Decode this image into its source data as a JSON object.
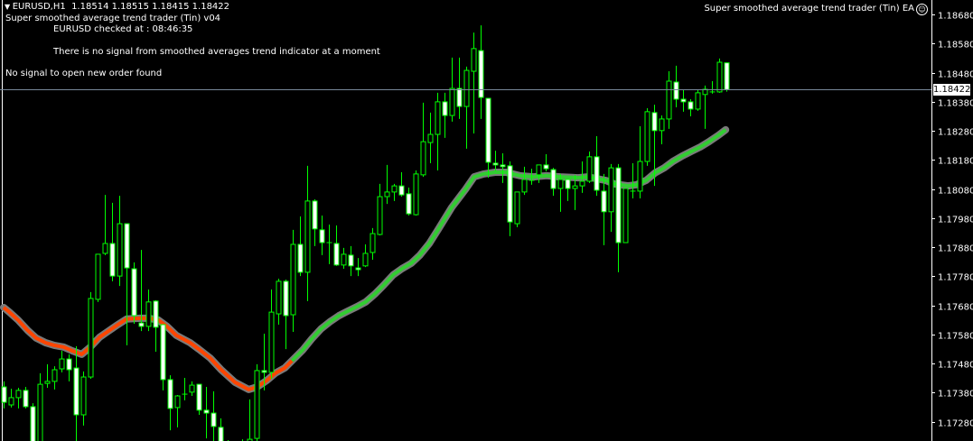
{
  "header": {
    "collapse_icon": "triangle-down-icon",
    "symbol_line": "EURUSD,H1  1.18514 1.18515 1.18415 1.18422",
    "ea_name_version": "Super smoothed average trend trader (Tin) v04",
    "checked_line": "EURUSD checked at : 08:46:35",
    "signal_message": "There is no signal from smoothed averages trend indicator at a moment",
    "order_message": "No signal to open new order found",
    "ea_title": "Super smoothed average trend trader (Tin) EA",
    "ea_status_icon": "smiley-icon"
  },
  "colors": {
    "background": "#000000",
    "candle_outline": "#00ff00",
    "bear_fill": "#ffffff",
    "bull_fill": "#000000",
    "ma_down": "#ff4500",
    "ma_up": "#32cd32",
    "ma_shadow": "#7a7a7a",
    "bid_line": "#778899"
  },
  "chart_data": {
    "type": "candlestick",
    "symbol": "EURUSD",
    "timeframe": "H1",
    "ylim": [
      1.17214,
      1.1873
    ],
    "grid": false,
    "y_ticks": [
      "1.18680",
      "1.18580",
      "1.18480",
      "1.18380",
      "1.18280",
      "1.18180",
      "1.18080",
      "1.17980",
      "1.17880",
      "1.17780",
      "1.17680",
      "1.17580",
      "1.17480",
      "1.17380",
      "1.17280"
    ],
    "bid": "1.18422",
    "ohlc_fields": [
      "open",
      "high",
      "low",
      "close"
    ],
    "candles": [
      [
        1.174,
        1.17419,
        1.17326,
        1.17347
      ],
      [
        1.17338,
        1.17394,
        1.17329,
        1.17363
      ],
      [
        1.17363,
        1.17397,
        1.17326,
        1.17388
      ],
      [
        1.17388,
        1.174,
        1.17326,
        1.17332
      ],
      [
        1.17332,
        1.17344,
        1.17186,
        1.17211
      ],
      [
        1.17211,
        1.17447,
        1.17192,
        1.17409
      ],
      [
        1.17412,
        1.17478,
        1.17397,
        1.17419
      ],
      [
        1.17419,
        1.17471,
        1.17391,
        1.17459
      ],
      [
        1.17462,
        1.17524,
        1.1745,
        1.17496
      ],
      [
        1.17496,
        1.17512,
        1.17419,
        1.17459
      ],
      [
        1.17465,
        1.1754,
        1.17214,
        1.17304
      ],
      [
        1.17304,
        1.17453,
        1.17267,
        1.17434
      ],
      [
        1.17434,
        1.17726,
        1.17428,
        1.17704
      ],
      [
        1.17701,
        1.17856,
        1.17692,
        1.17856
      ],
      [
        1.17859,
        1.1806,
        1.17853,
        1.17893
      ],
      [
        1.17893,
        1.18033,
        1.17763,
        1.17781
      ],
      [
        1.17781,
        1.18057,
        1.17747,
        1.17961
      ],
      [
        1.17961,
        1.17961,
        1.17543,
        1.17809
      ],
      [
        1.17806,
        1.17828,
        1.17617,
        1.17645
      ],
      [
        1.1762,
        1.17871,
        1.17592,
        1.17608
      ],
      [
        1.17608,
        1.17735,
        1.17592,
        1.17692
      ],
      [
        1.17695,
        1.17698,
        1.17521,
        1.17605
      ],
      [
        1.17614,
        1.17614,
        1.17388,
        1.17425
      ],
      [
        1.17425,
        1.1744,
        1.17251,
        1.17326
      ],
      [
        1.17329,
        1.17372,
        1.17261,
        1.17369
      ],
      [
        1.17375,
        1.17431,
        1.17354,
        1.17375
      ],
      [
        1.17382,
        1.17419,
        1.17369,
        1.17406
      ],
      [
        1.17409,
        1.17409,
        1.17304,
        1.1732
      ],
      [
        1.1732,
        1.174,
        1.17223,
        1.1731
      ],
      [
        1.1731,
        1.17385,
        1.17214,
        1.17264
      ],
      [
        1.17261,
        1.17292,
        1.17196,
        1.17205
      ],
      [
        1.17205,
        1.17217,
        1.17165,
        1.1718
      ],
      [
        1.17174,
        1.17211,
        1.17155,
        1.17196
      ],
      [
        1.17196,
        1.1722,
        1.17171,
        1.17183
      ],
      [
        1.17183,
        1.17357,
        1.17165,
        1.1722
      ],
      [
        1.17223,
        1.17478,
        1.17214,
        1.17456
      ],
      [
        1.17456,
        1.17583,
        1.17388,
        1.1745
      ],
      [
        1.1745,
        1.17735,
        1.17428,
        1.17657
      ],
      [
        1.17651,
        1.17772,
        1.17614,
        1.17763
      ],
      [
        1.17763,
        1.17769,
        1.1753,
        1.17645
      ],
      [
        1.17648,
        1.1794,
        1.17589,
        1.1789
      ],
      [
        1.1789,
        1.17986,
        1.17781,
        1.17794
      ],
      [
        1.17794,
        1.1816,
        1.17695,
        1.18039
      ],
      [
        1.18039,
        1.18045,
        1.17884,
        1.17943
      ],
      [
        1.1794,
        1.17989,
        1.17853,
        1.17896
      ],
      [
        1.17896,
        1.17958,
        1.17822,
        1.17896
      ],
      [
        1.17893,
        1.17955,
        1.17816,
        1.17819
      ],
      [
        1.17819,
        1.17878,
        1.17806,
        1.17856
      ],
      [
        1.17853,
        1.17884,
        1.17781,
        1.17816
      ],
      [
        1.17809,
        1.17843,
        1.17781,
        1.17803
      ],
      [
        1.17816,
        1.1789,
        1.17812,
        1.17859
      ],
      [
        1.17862,
        1.17946,
        1.17837,
        1.17927
      ],
      [
        1.17924,
        1.18098,
        1.17921,
        1.18054
      ],
      [
        1.18054,
        1.18163,
        1.18029,
        1.1807
      ],
      [
        1.1807,
        1.18098,
        1.18039,
        1.18091
      ],
      [
        1.18091,
        1.18138,
        1.18054,
        1.1806
      ],
      [
        1.18064,
        1.18085,
        1.17989,
        1.17995
      ],
      [
        1.17992,
        1.18144,
        1.17989,
        1.18132
      ],
      [
        1.18129,
        1.18377,
        1.18122,
        1.18243
      ],
      [
        1.1824,
        1.18343,
        1.18169,
        1.18268
      ],
      [
        1.18268,
        1.18411,
        1.18144,
        1.1838
      ],
      [
        1.1838,
        1.18411,
        1.18256,
        1.18333
      ],
      [
        1.18333,
        1.18532,
        1.18312,
        1.18426
      ],
      [
        1.18426,
        1.18532,
        1.18321,
        1.18364
      ],
      [
        1.18364,
        1.18501,
        1.18219,
        1.18488
      ],
      [
        1.18485,
        1.18618,
        1.18271,
        1.18563
      ],
      [
        1.18556,
        1.18643,
        1.18321,
        1.18395
      ],
      [
        1.18392,
        1.18392,
        1.18119,
        1.18172
      ],
      [
        1.18169,
        1.18212,
        1.18141,
        1.18163
      ],
      [
        1.18163,
        1.18203,
        1.18101,
        1.18157
      ],
      [
        1.1816,
        1.18175,
        1.17918,
        1.17967
      ],
      [
        1.17961,
        1.1807,
        1.17949,
        1.1807
      ],
      [
        1.1807,
        1.18157,
        1.1806,
        1.18113
      ],
      [
        1.1811,
        1.1815,
        1.18095,
        1.1811
      ],
      [
        1.18129,
        1.18163,
        1.18101,
        1.18163
      ],
      [
        1.18163,
        1.182,
        1.18141,
        1.1815
      ],
      [
        1.18147,
        1.18153,
        1.18057,
        1.18082
      ],
      [
        1.18082,
        1.18132,
        1.18002,
        1.18113
      ],
      [
        1.18113,
        1.18113,
        1.18039,
        1.18082
      ],
      [
        1.18082,
        1.18129,
        1.18008,
        1.18091
      ],
      [
        1.18091,
        1.18175,
        1.18067,
        1.18107
      ],
      [
        1.18107,
        1.18209,
        1.18101,
        1.18191
      ],
      [
        1.18191,
        1.18262,
        1.18057,
        1.18076
      ],
      [
        1.18073,
        1.18132,
        1.17887,
        1.18002
      ],
      [
        1.18002,
        1.18166,
        1.17933,
        1.18153
      ],
      [
        1.18153,
        1.18166,
        1.17794,
        1.17896
      ],
      [
        1.17896,
        1.18082,
        1.17896,
        1.18082
      ],
      [
        1.18073,
        1.18169,
        1.18048,
        1.18073
      ],
      [
        1.18073,
        1.18296,
        1.18048,
        1.18175
      ],
      [
        1.18175,
        1.18358,
        1.1816,
        1.18346
      ],
      [
        1.18343,
        1.1837,
        1.18091,
        1.18281
      ],
      [
        1.18281,
        1.18333,
        1.18234,
        1.18321
      ],
      [
        1.18321,
        1.18485,
        1.18287,
        1.18451
      ],
      [
        1.18448,
        1.18504,
        1.18361,
        1.18389
      ],
      [
        1.18389,
        1.18423,
        1.18346,
        1.1838
      ],
      [
        1.1838,
        1.18389,
        1.1833,
        1.18355
      ],
      [
        1.18355,
        1.18423,
        1.18349,
        1.18411
      ],
      [
        1.18405,
        1.18436,
        1.18287,
        1.18423
      ],
      [
        1.18414,
        1.18451,
        1.18408,
        1.18414
      ],
      [
        1.18414,
        1.18529,
        1.18411,
        1.18516
      ],
      [
        1.18514,
        1.18515,
        1.18415,
        1.18422
      ]
    ],
    "ma_down_points": [
      [
        0,
        1.17673
      ],
      [
        0.8,
        1.17657
      ],
      [
        2,
        1.1763
      ],
      [
        3.3,
        1.17595
      ],
      [
        4.5,
        1.17568
      ],
      [
        5.8,
        1.17552
      ],
      [
        7,
        1.17543
      ],
      [
        8.3,
        1.17537
      ],
      [
        9.5,
        1.17524
      ],
      [
        10.8,
        1.17512
      ],
      [
        12,
        1.17537
      ],
      [
        13.3,
        1.17571
      ],
      [
        14.5,
        1.17592
      ],
      [
        15.8,
        1.17614
      ],
      [
        17,
        1.17633
      ],
      [
        18.9,
        1.17636
      ],
      [
        20.1,
        1.17636
      ],
      [
        21.4,
        1.1763
      ],
      [
        22.6,
        1.17608
      ],
      [
        23.9,
        1.17577
      ],
      [
        25.8,
        1.17552
      ],
      [
        27,
        1.1753
      ],
      [
        28.6,
        1.17499
      ],
      [
        30.1,
        1.17459
      ],
      [
        32,
        1.17416
      ],
      [
        33.9,
        1.17391
      ],
      [
        35.1,
        1.174
      ],
      [
        36.4,
        1.17422
      ],
      [
        37.6,
        1.17447
      ],
      [
        38.9,
        1.17465
      ],
      [
        39.9,
        1.1749
      ]
    ],
    "ma_up_points": [
      [
        39.9,
        1.1749
      ],
      [
        41.4,
        1.17527
      ],
      [
        42.6,
        1.17564
      ],
      [
        43.9,
        1.17599
      ],
      [
        45.1,
        1.17623
      ],
      [
        46.4,
        1.17645
      ],
      [
        47.6,
        1.1766
      ],
      [
        48.9,
        1.17676
      ],
      [
        50.1,
        1.17692
      ],
      [
        51.4,
        1.1772
      ],
      [
        52.6,
        1.1775
      ],
      [
        53.9,
        1.17785
      ],
      [
        55.1,
        1.17806
      ],
      [
        56.4,
        1.17825
      ],
      [
        57.6,
        1.17853
      ],
      [
        58.9,
        1.17893
      ],
      [
        60.1,
        1.1794
      ],
      [
        62,
        1.18017
      ],
      [
        63.9,
        1.18079
      ],
      [
        65.1,
        1.18122
      ],
      [
        66.4,
        1.18132
      ],
      [
        68,
        1.18138
      ],
      [
        69.5,
        1.18138
      ],
      [
        71.4,
        1.18126
      ],
      [
        73.3,
        1.18122
      ],
      [
        75.1,
        1.18126
      ],
      [
        77,
        1.18122
      ],
      [
        79.5,
        1.18119
      ],
      [
        80.8,
        1.18122
      ],
      [
        82,
        1.18116
      ],
      [
        83.3,
        1.1811
      ],
      [
        84.5,
        1.18098
      ],
      [
        86.4,
        1.18091
      ],
      [
        87.6,
        1.18095
      ],
      [
        88.9,
        1.1811
      ],
      [
        90.1,
        1.18135
      ],
      [
        91.4,
        1.18153
      ],
      [
        92.6,
        1.18175
      ],
      [
        93.9,
        1.18194
      ],
      [
        95.1,
        1.18209
      ],
      [
        96.4,
        1.18225
      ],
      [
        97.6,
        1.18243
      ],
      [
        98.9,
        1.18265
      ],
      [
        99.9,
        1.18284
      ]
    ]
  }
}
